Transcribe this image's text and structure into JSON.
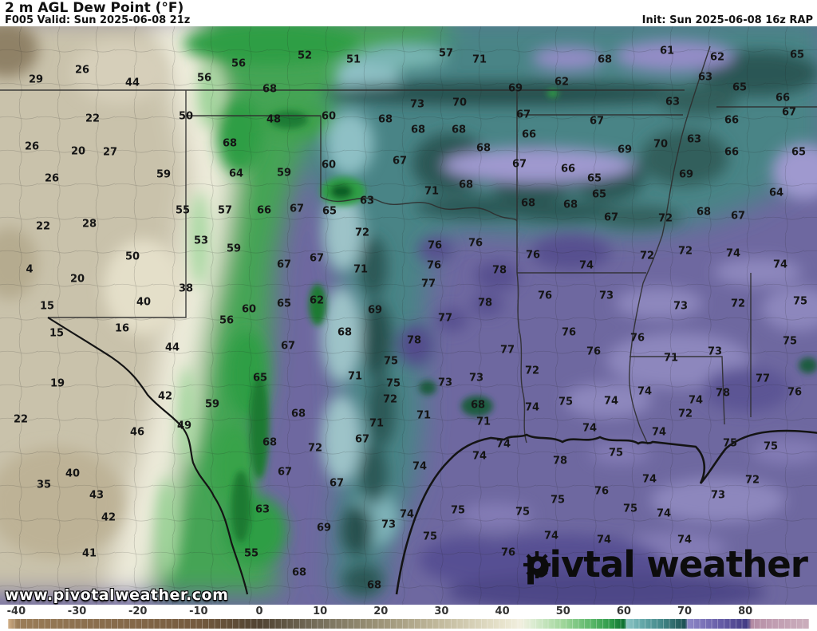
{
  "header": {
    "title": "2 m AGL Dew Point (°F)",
    "valid": "F005 Valid: Sun 2025-06-08 21z",
    "init": "Init: Sun 2025-06-08 16z RAP"
  },
  "watermark": "www.pivotalweather.com",
  "logo": {
    "part1": "piv",
    "part2": "tal weather"
  },
  "colorbar": {
    "ticks": [
      "-40",
      "-30",
      "-20",
      "-10",
      "0",
      "10",
      "20",
      "30",
      "40",
      "50",
      "60",
      "70",
      "80"
    ],
    "stops": [
      {
        "p": 0,
        "c": "#d2b088"
      },
      {
        "p": 1.2,
        "c": "#9b7d58"
      },
      {
        "p": 8.6,
        "c": "#8d7150"
      },
      {
        "p": 16.2,
        "c": "#836748"
      },
      {
        "p": 23.8,
        "c": "#745a3e"
      },
      {
        "p": 31.4,
        "c": "#514433"
      },
      {
        "p": 39,
        "c": "#77705c"
      },
      {
        "p": 46.5,
        "c": "#9d9478"
      },
      {
        "p": 54.1,
        "c": "#c3bb9e"
      },
      {
        "p": 61.7,
        "c": "#e7e3cc"
      },
      {
        "p": 64,
        "c": "#f1efdf"
      },
      {
        "p": 65.5,
        "c": "#dcecd2"
      },
      {
        "p": 69.3,
        "c": "#9fd69a"
      },
      {
        "p": 73.1,
        "c": "#55b465"
      },
      {
        "p": 75.4,
        "c": "#2b9747"
      },
      {
        "p": 76.9,
        "c": "#0e7130"
      },
      {
        "p": 77.3,
        "c": "#8ac3c4"
      },
      {
        "p": 79.2,
        "c": "#63a7a8"
      },
      {
        "p": 81.4,
        "c": "#478b8c"
      },
      {
        "p": 84.5,
        "c": "#1c5152"
      },
      {
        "p": 84.9,
        "c": "#8d87c6"
      },
      {
        "p": 86.8,
        "c": "#7b73b8"
      },
      {
        "p": 89,
        "c": "#655ca6"
      },
      {
        "p": 92.4,
        "c": "#423a82"
      },
      {
        "p": 92.8,
        "c": "#b48ca4"
      },
      {
        "p": 95.8,
        "c": "#c19eb2"
      },
      {
        "p": 100,
        "c": "#cbaebc"
      }
    ]
  },
  "chart_data": {
    "type": "heatmap",
    "title": "2 m AGL Dew Point (°F)",
    "legend_range": [
      -40,
      90
    ],
    "units": "°F",
    "values": [
      [
        45,
        100,
        "29"
      ],
      [
        103,
        88,
        "26"
      ],
      [
        166,
        104,
        "44"
      ],
      [
        256,
        98,
        "56"
      ],
      [
        299,
        80,
        "56"
      ],
      [
        382,
        70,
        "52"
      ],
      [
        443,
        75,
        "51"
      ],
      [
        338,
        112,
        "68"
      ],
      [
        116,
        149,
        "22"
      ],
      [
        233,
        146,
        "50"
      ],
      [
        343,
        150,
        "48"
      ],
      [
        412,
        146,
        "60"
      ],
      [
        483,
        150,
        "68"
      ],
      [
        40,
        184,
        "26"
      ],
      [
        98,
        190,
        "20"
      ],
      [
        138,
        191,
        "27"
      ],
      [
        288,
        180,
        "68"
      ],
      [
        205,
        219,
        "59"
      ],
      [
        296,
        218,
        "64"
      ],
      [
        356,
        217,
        "59"
      ],
      [
        412,
        207,
        "60"
      ],
      [
        501,
        202,
        "67"
      ],
      [
        65,
        224,
        "26"
      ],
      [
        460,
        252,
        "63"
      ],
      [
        229,
        264,
        "55"
      ],
      [
        282,
        264,
        "57"
      ],
      [
        331,
        264,
        "66"
      ],
      [
        372,
        262,
        "67"
      ],
      [
        413,
        265,
        "65"
      ],
      [
        54,
        284,
        "22"
      ],
      [
        112,
        281,
        "28"
      ],
      [
        454,
        292,
        "72"
      ],
      [
        252,
        302,
        "53"
      ],
      [
        559,
        67,
        "57"
      ],
      [
        601,
        75,
        "71"
      ],
      [
        758,
        75,
        "68"
      ],
      [
        836,
        64,
        "61"
      ],
      [
        899,
        72,
        "62"
      ],
      [
        999,
        69,
        "65"
      ],
      [
        704,
        103,
        "62"
      ],
      [
        646,
        111,
        "69"
      ],
      [
        884,
        97,
        "63"
      ],
      [
        927,
        110,
        "65"
      ],
      [
        523,
        131,
        "73"
      ],
      [
        576,
        129,
        "70"
      ],
      [
        981,
        123,
        "66"
      ],
      [
        656,
        144,
        "67"
      ],
      [
        989,
        141,
        "67"
      ],
      [
        748,
        152,
        "67"
      ],
      [
        843,
        128,
        "63"
      ],
      [
        917,
        151,
        "66"
      ],
      [
        524,
        163,
        "68"
      ],
      [
        575,
        163,
        "68"
      ],
      [
        663,
        169,
        "66"
      ],
      [
        870,
        175,
        "63"
      ],
      [
        828,
        181,
        "70"
      ],
      [
        783,
        188,
        "69"
      ],
      [
        606,
        186,
        "68"
      ],
      [
        917,
        191,
        "66"
      ],
      [
        1001,
        191,
        "65"
      ],
      [
        651,
        206,
        "67"
      ],
      [
        712,
        212,
        "66"
      ],
      [
        860,
        219,
        "69"
      ],
      [
        584,
        232,
        "68"
      ],
      [
        541,
        240,
        "71"
      ],
      [
        745,
        224,
        "65"
      ],
      [
        751,
        244,
        "65"
      ],
      [
        973,
        242,
        "64"
      ],
      [
        662,
        255,
        "68"
      ],
      [
        715,
        257,
        "68"
      ],
      [
        882,
        266,
        "68"
      ],
      [
        766,
        273,
        "67"
      ],
      [
        834,
        274,
        "72"
      ],
      [
        925,
        271,
        "67"
      ],
      [
        293,
        312,
        "59"
      ],
      [
        166,
        322,
        "50"
      ],
      [
        356,
        332,
        "67"
      ],
      [
        397,
        324,
        "67"
      ],
      [
        452,
        338,
        "71"
      ],
      [
        97,
        350,
        "20"
      ],
      [
        37,
        338,
        "4"
      ],
      [
        233,
        362,
        "38"
      ],
      [
        180,
        379,
        "40"
      ],
      [
        397,
        377,
        "62"
      ],
      [
        356,
        381,
        "65"
      ],
      [
        312,
        388,
        "60"
      ],
      [
        470,
        389,
        "69"
      ],
      [
        59,
        384,
        "15"
      ],
      [
        284,
        402,
        "56"
      ],
      [
        153,
        412,
        "16"
      ],
      [
        71,
        418,
        "15"
      ],
      [
        432,
        417,
        "68"
      ],
      [
        216,
        436,
        "44"
      ],
      [
        361,
        434,
        "67"
      ],
      [
        490,
        453,
        "75"
      ],
      [
        72,
        481,
        "19"
      ],
      [
        326,
        474,
        "65"
      ],
      [
        445,
        472,
        "71"
      ],
      [
        493,
        481,
        "75"
      ],
      [
        207,
        497,
        "42"
      ],
      [
        489,
        501,
        "72"
      ],
      [
        266,
        507,
        "59"
      ],
      [
        374,
        519,
        "68"
      ],
      [
        26,
        526,
        "22"
      ],
      [
        231,
        534,
        "49"
      ],
      [
        472,
        531,
        "71"
      ],
      [
        545,
        308,
        "76"
      ],
      [
        596,
        305,
        "76"
      ],
      [
        668,
        320,
        "76"
      ],
      [
        626,
        339,
        "78"
      ],
      [
        735,
        333,
        "74"
      ],
      [
        811,
        321,
        "72"
      ],
      [
        859,
        315,
        "72"
      ],
      [
        919,
        318,
        "74"
      ],
      [
        978,
        332,
        "74"
      ],
      [
        544,
        333,
        "76"
      ],
      [
        537,
        356,
        "77"
      ],
      [
        608,
        380,
        "78"
      ],
      [
        683,
        371,
        "76"
      ],
      [
        760,
        371,
        "73"
      ],
      [
        853,
        384,
        "73"
      ],
      [
        925,
        381,
        "72"
      ],
      [
        1003,
        378,
        "75"
      ],
      [
        558,
        399,
        "77"
      ],
      [
        519,
        427,
        "78"
      ],
      [
        713,
        417,
        "76"
      ],
      [
        799,
        424,
        "76"
      ],
      [
        990,
        428,
        "75"
      ],
      [
        636,
        439,
        "77"
      ],
      [
        744,
        441,
        "76"
      ],
      [
        841,
        449,
        "71"
      ],
      [
        896,
        441,
        "73"
      ],
      [
        667,
        465,
        "72"
      ],
      [
        558,
        480,
        "73"
      ],
      [
        597,
        474,
        "73"
      ],
      [
        956,
        475,
        "77"
      ],
      [
        906,
        493,
        "78"
      ],
      [
        996,
        492,
        "76"
      ],
      [
        808,
        491,
        "74"
      ],
      [
        872,
        502,
        "74"
      ],
      [
        599,
        508,
        "68"
      ],
      [
        709,
        504,
        "75"
      ],
      [
        766,
        503,
        "74"
      ],
      [
        667,
        511,
        "74"
      ],
      [
        859,
        519,
        "72"
      ],
      [
        531,
        521,
        "71"
      ],
      [
        606,
        529,
        "71"
      ],
      [
        172,
        542,
        "46"
      ],
      [
        338,
        555,
        "68"
      ],
      [
        395,
        562,
        "72"
      ],
      [
        454,
        551,
        "67"
      ],
      [
        91,
        594,
        "40"
      ],
      [
        55,
        608,
        "35"
      ],
      [
        357,
        592,
        "67"
      ],
      [
        422,
        606,
        "67"
      ],
      [
        121,
        621,
        "43"
      ],
      [
        136,
        649,
        "42"
      ],
      [
        329,
        639,
        "63"
      ],
      [
        406,
        662,
        "69"
      ],
      [
        487,
        658,
        "73"
      ],
      [
        510,
        645,
        "74"
      ],
      [
        112,
        694,
        "41"
      ],
      [
        315,
        694,
        "55"
      ],
      [
        375,
        718,
        "68"
      ],
      [
        469,
        734,
        "68"
      ],
      [
        631,
        557,
        "74"
      ],
      [
        601,
        572,
        "74"
      ],
      [
        526,
        585,
        "74"
      ],
      [
        702,
        578,
        "78"
      ],
      [
        772,
        568,
        "75"
      ],
      [
        826,
        542,
        "74"
      ],
      [
        915,
        556,
        "75"
      ],
      [
        966,
        560,
        "75"
      ],
      [
        739,
        537,
        "74"
      ],
      [
        814,
        601,
        "74"
      ],
      [
        943,
        602,
        "72"
      ],
      [
        754,
        616,
        "76"
      ],
      [
        900,
        621,
        "73"
      ],
      [
        699,
        627,
        "75"
      ],
      [
        574,
        640,
        "75"
      ],
      [
        655,
        642,
        "75"
      ],
      [
        790,
        638,
        "75"
      ],
      [
        832,
        644,
        "74"
      ],
      [
        539,
        673,
        "75"
      ],
      [
        691,
        672,
        "74"
      ],
      [
        757,
        677,
        "74"
      ],
      [
        858,
        677,
        "74"
      ],
      [
        637,
        693,
        "76"
      ]
    ]
  }
}
